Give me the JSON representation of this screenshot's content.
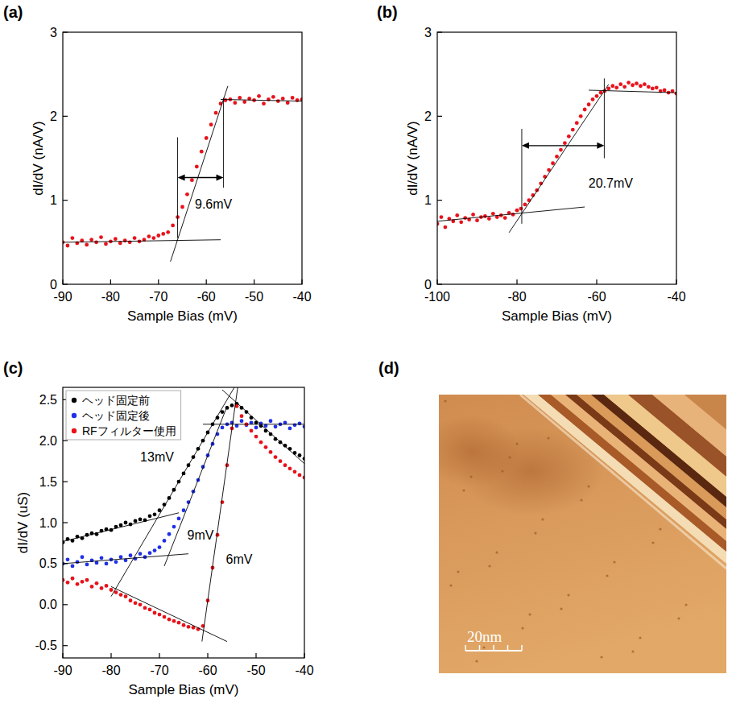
{
  "chart_data": [
    {
      "type": "scatter",
      "title": "(a)",
      "x_label": "Sample Bias (mV)",
      "y_label": "dI/dV (nA/V)",
      "xlim": [
        -90,
        -40
      ],
      "xticks": [
        -90,
        -80,
        -70,
        -60,
        -50,
        -40
      ],
      "ylim": [
        0,
        3
      ],
      "yticks": [
        0,
        1,
        2,
        3
      ],
      "x": [
        -90,
        -89,
        -88,
        -87,
        -86,
        -85,
        -84,
        -83,
        -82,
        -81,
        -80,
        -79,
        -78,
        -77,
        -76,
        -75,
        -74,
        -73,
        -72,
        -71,
        -70,
        -69,
        -68,
        -67,
        -66,
        -65,
        -64,
        -63,
        -62,
        -61,
        -60,
        -59,
        -58,
        -57,
        -56,
        -55,
        -54,
        -53,
        -52,
        -51,
        -50,
        -49,
        -48,
        -47,
        -46,
        -45,
        -44,
        -43,
        -42,
        -41,
        -40
      ],
      "series": [
        {
          "color": "#e8121b",
          "marker": "circle",
          "values": [
            0.5,
            0.46,
            0.55,
            0.49,
            0.52,
            0.47,
            0.53,
            0.5,
            0.56,
            0.48,
            0.51,
            0.54,
            0.49,
            0.52,
            0.5,
            0.55,
            0.51,
            0.53,
            0.57,
            0.55,
            0.58,
            0.6,
            0.62,
            0.7,
            0.8,
            0.92,
            1.07,
            1.24,
            1.4,
            1.58,
            1.74,
            1.9,
            2.04,
            2.15,
            2.19,
            2.2,
            2.16,
            2.22,
            2.17,
            2.21,
            2.19,
            2.24,
            2.15,
            2.2,
            2.23,
            2.18,
            2.21,
            2.16,
            2.22,
            2.19,
            2.2
          ]
        }
      ],
      "guides": [
        {
          "x": [
            -90,
            -57
          ],
          "y": [
            0.5,
            0.53
          ]
        },
        {
          "x": [
            -67.5,
            -55.5
          ],
          "y": [
            0.27,
            2.36
          ]
        },
        {
          "x": [
            -57,
            -40
          ],
          "y": [
            2.2,
            2.18
          ]
        },
        {
          "x": [
            -66,
            -66
          ],
          "y": [
            0.55,
            1.75
          ]
        },
        {
          "x": [
            -56.4,
            -56.4
          ],
          "y": [
            1.15,
            2.22
          ]
        }
      ],
      "annotations": [
        {
          "text": "9.6mV",
          "x": -58.5,
          "y": 0.95,
          "span": {
            "x": [
              -66,
              -56.4
            ],
            "y": 1.27
          }
        }
      ]
    },
    {
      "type": "scatter",
      "title": "(b)",
      "x_label": "Sample Bias (mV)",
      "y_label": "dI/dV (nA/V)",
      "xlim": [
        -100,
        -40
      ],
      "xticks": [
        -100,
        -80,
        -60,
        -40
      ],
      "ylim": [
        0,
        3
      ],
      "yticks": [
        0,
        1,
        2,
        3
      ],
      "x": [
        -100,
        -99,
        -98,
        -97,
        -96,
        -95,
        -94,
        -93,
        -92,
        -91,
        -90,
        -89,
        -88,
        -87,
        -86,
        -85,
        -84,
        -83,
        -82,
        -81,
        -80,
        -79,
        -78,
        -77,
        -76,
        -75,
        -74,
        -73,
        -72,
        -71,
        -70,
        -69,
        -68,
        -67,
        -66,
        -65,
        -64,
        -63,
        -62,
        -61,
        -60,
        -59,
        -58,
        -57,
        -56,
        -55,
        -54,
        -53,
        -52,
        -51,
        -50,
        -49,
        -48,
        -47,
        -46,
        -45,
        -44,
        -43,
        -42,
        -41,
        -40
      ],
      "series": [
        {
          "color": "#e8121b",
          "marker": "circle",
          "values": [
            0.72,
            0.8,
            0.68,
            0.78,
            0.75,
            0.82,
            0.74,
            0.79,
            0.77,
            0.83,
            0.76,
            0.8,
            0.81,
            0.78,
            0.84,
            0.8,
            0.82,
            0.79,
            0.85,
            0.83,
            0.88,
            0.9,
            0.95,
            1.0,
            1.06,
            1.12,
            1.2,
            1.28,
            1.36,
            1.44,
            1.52,
            1.6,
            1.68,
            1.76,
            1.84,
            1.92,
            2.0,
            2.08,
            2.14,
            2.2,
            2.24,
            2.28,
            2.3,
            2.33,
            2.36,
            2.34,
            2.38,
            2.35,
            2.4,
            2.37,
            2.39,
            2.36,
            2.38,
            2.35,
            2.33,
            2.34,
            2.3,
            2.31,
            2.28,
            2.3,
            2.27
          ]
        }
      ],
      "guides": [
        {
          "x": [
            -100,
            -63
          ],
          "y": [
            0.75,
            0.92
          ]
        },
        {
          "x": [
            -82,
            -57
          ],
          "y": [
            0.615,
            2.38
          ]
        },
        {
          "x": [
            -62,
            -40
          ],
          "y": [
            2.31,
            2.28
          ]
        },
        {
          "x": [
            -78.8,
            -78.8
          ],
          "y": [
            0.72,
            1.85
          ]
        },
        {
          "x": [
            -58.1,
            -58.1
          ],
          "y": [
            1.5,
            2.45
          ]
        }
      ],
      "annotations": [
        {
          "text": "20.7mV",
          "x": -56.5,
          "y": 1.2,
          "span": {
            "x": [
              -78.8,
              -58.1
            ],
            "y": 1.65
          }
        }
      ]
    },
    {
      "type": "scatter",
      "title": "(c)",
      "x_label": "Sample Bias (mV)",
      "y_label": "dI/dV (uS)",
      "xlim": [
        -90,
        -40
      ],
      "xticks": [
        -90,
        -80,
        -70,
        -60,
        -50,
        -40
      ],
      "ylim": [
        -0.65,
        2.65
      ],
      "yticks": [
        -0.5,
        {
          "value": 0,
          "label": "0.0"
        },
        0.5,
        {
          "value": 1,
          "label": "1.0"
        },
        1.5,
        {
          "value": 2,
          "label": "2.0"
        },
        2.5
      ],
      "legend": "upper left",
      "x": [
        -90,
        -89,
        -88,
        -87,
        -86,
        -85,
        -84,
        -83,
        -82,
        -81,
        -80,
        -79,
        -78,
        -77,
        -76,
        -75,
        -74,
        -73,
        -72,
        -71,
        -70,
        -69,
        -68,
        -67,
        -66,
        -65,
        -64,
        -63,
        -62,
        -61,
        -60,
        -59,
        -58,
        -57,
        -56,
        -55,
        -54,
        -53,
        -52,
        -51,
        -50,
        -49,
        -48,
        -47,
        -46,
        -45,
        -44,
        -43,
        -42,
        -41,
        -40
      ],
      "series": [
        {
          "name": "ヘッド固定前",
          "color": "#000000",
          "marker": "circle",
          "values": [
            0.76,
            0.8,
            0.78,
            0.83,
            0.81,
            0.85,
            0.87,
            0.86,
            0.9,
            0.92,
            0.91,
            0.95,
            0.97,
            1.0,
            0.98,
            1.02,
            1.04,
            1.03,
            1.08,
            1.1,
            1.15,
            1.22,
            1.3,
            1.4,
            1.5,
            1.6,
            1.7,
            1.8,
            1.9,
            2.0,
            2.1,
            2.2,
            2.28,
            2.35,
            2.4,
            2.43,
            2.45,
            2.4,
            2.35,
            2.28,
            2.22,
            2.18,
            2.12,
            2.08,
            2.02,
            1.98,
            1.94,
            1.9,
            1.85,
            1.82,
            1.78
          ]
        },
        {
          "name": "ヘッド固定後",
          "color": "#2030e8",
          "marker": "circle",
          "values": [
            0.5,
            0.55,
            0.47,
            0.52,
            0.58,
            0.49,
            0.54,
            0.51,
            0.57,
            0.5,
            0.55,
            0.52,
            0.58,
            0.54,
            0.6,
            0.56,
            0.62,
            0.58,
            0.63,
            0.66,
            0.7,
            0.78,
            0.86,
            0.95,
            1.05,
            1.15,
            1.25,
            1.38,
            1.52,
            1.68,
            1.82,
            1.96,
            2.08,
            2.16,
            2.2,
            2.22,
            2.18,
            2.24,
            2.19,
            2.22,
            2.16,
            2.21,
            2.18,
            2.24,
            2.17,
            2.2,
            2.22,
            2.15,
            2.19,
            2.21,
            2.17
          ]
        },
        {
          "name": "RFフィルター使用",
          "color": "#e8121b",
          "marker": "circle",
          "values": [
            0.3,
            0.27,
            0.32,
            0.25,
            0.28,
            0.3,
            0.22,
            0.26,
            0.2,
            0.23,
            0.18,
            0.15,
            0.12,
            0.1,
            0.05,
            0.02,
            0.0,
            -0.04,
            -0.06,
            -0.1,
            -0.12,
            -0.15,
            -0.18,
            -0.2,
            -0.22,
            -0.25,
            -0.27,
            -0.28,
            -0.3,
            -0.26,
            0.05,
            0.45,
            0.85,
            1.25,
            1.7,
            2.15,
            2.42,
            2.3,
            2.2,
            2.12,
            2.05,
            1.98,
            1.92,
            1.86,
            1.8,
            1.75,
            1.7,
            1.66,
            1.62,
            1.58,
            1.55
          ]
        }
      ],
      "guides": [
        {
          "x": [
            -90,
            -66
          ],
          "y": [
            0.77,
            1.12
          ]
        },
        {
          "x": [
            -80,
            -54
          ],
          "y": [
            0.1,
            2.7
          ]
        },
        {
          "x": [
            -57,
            -40
          ],
          "y": [
            2.62,
            1.72
          ]
        },
        {
          "x": [
            -90,
            -64
          ],
          "y": [
            0.5,
            0.62
          ]
        },
        {
          "x": [
            -69,
            -56
          ],
          "y": [
            0.47,
            2.42
          ]
        },
        {
          "x": [
            -61,
            -40
          ],
          "y": [
            2.2,
            2.2
          ]
        },
        {
          "x": [
            -80,
            -56
          ],
          "y": [
            0.22,
            -0.45
          ]
        },
        {
          "x": [
            -61.2,
            -53.8
          ],
          "y": [
            -0.45,
            2.65
          ]
        }
      ],
      "annotations": [
        {
          "text": "13mV",
          "x": -70.5,
          "y": 1.8
        },
        {
          "text": "9mV",
          "x": -61.5,
          "y": 0.85
        },
        {
          "text": "6mV",
          "x": -53.5,
          "y": 0.55
        }
      ]
    },
    {
      "type": "image",
      "title": "(d)",
      "annotations": [
        {
          "text": "20nm"
        }
      ]
    }
  ]
}
